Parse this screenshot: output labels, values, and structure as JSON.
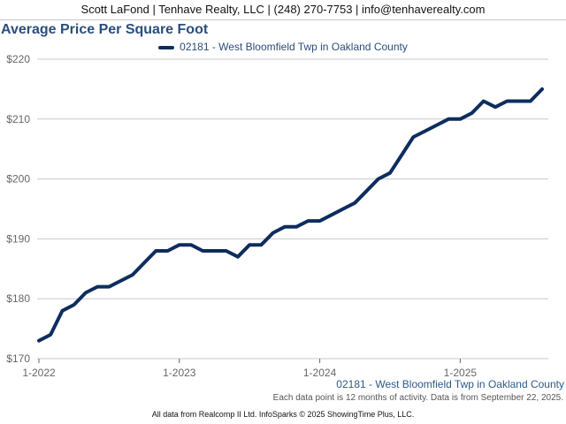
{
  "header": {
    "contact": "Scott LaFond | Tenhave Realty, LLC | (248) 270-7753 | info@tenhaverealty.com"
  },
  "colors": {
    "series_line": "#0d2d5e",
    "title": "#2b4d7a",
    "grid": "#c8c8c8",
    "axis_text": "#666666"
  },
  "chart_data": {
    "type": "line",
    "title": "Average Price Per Square Foot",
    "xlabel": "",
    "ylabel": "",
    "ylim": [
      170,
      220
    ],
    "yticks": [
      170,
      180,
      190,
      200,
      210,
      220
    ],
    "ytick_labels": [
      "$170",
      "$180",
      "$190",
      "$200",
      "$210",
      "$220"
    ],
    "xticks": [
      "1-2022",
      "1-2023",
      "1-2024",
      "1-2025"
    ],
    "grid": true,
    "legend_position": "top-center",
    "series": [
      {
        "name": "02181 - West Bloomfield Twp in Oakland County",
        "x": [
          "1-2022",
          "2-2022",
          "3-2022",
          "4-2022",
          "5-2022",
          "6-2022",
          "7-2022",
          "8-2022",
          "9-2022",
          "10-2022",
          "11-2022",
          "12-2022",
          "1-2023",
          "2-2023",
          "3-2023",
          "4-2023",
          "5-2023",
          "6-2023",
          "7-2023",
          "8-2023",
          "9-2023",
          "10-2023",
          "11-2023",
          "12-2023",
          "1-2024",
          "2-2024",
          "3-2024",
          "4-2024",
          "5-2024",
          "6-2024",
          "7-2024",
          "8-2024",
          "9-2024",
          "10-2024",
          "11-2024",
          "12-2024",
          "1-2025",
          "2-2025",
          "3-2025",
          "4-2025",
          "5-2025",
          "6-2025",
          "7-2025",
          "8-2025"
        ],
        "values": [
          173,
          174,
          178,
          179,
          181,
          182,
          182,
          183,
          184,
          186,
          188,
          188,
          189,
          189,
          188,
          188,
          188,
          187,
          189,
          189,
          191,
          192,
          192,
          193,
          193,
          194,
          195,
          196,
          198,
          200,
          201,
          204,
          207,
          208,
          209,
          210,
          210,
          211,
          213,
          212,
          213,
          213,
          213,
          215
        ]
      }
    ]
  },
  "footer": {
    "series_label": "02181 - West Bloomfield Twp in Oakland County",
    "note": "Each data point is 12 months of activity. Data is from September 22, 2025.",
    "copyright": "All data from Realcomp II Ltd. InfoSparks © 2025 ShowingTime Plus, LLC."
  }
}
